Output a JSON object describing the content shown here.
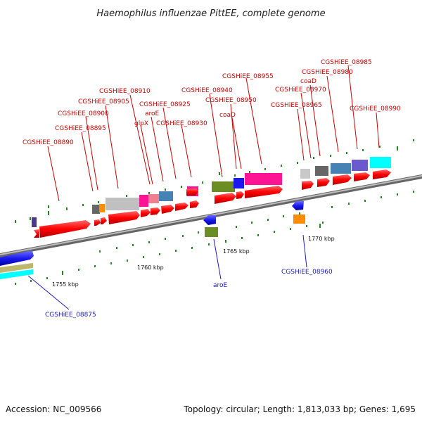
{
  "title": "Haemophilus influenzae PittEE, complete genome",
  "footer": {
    "accession": "Accession: NC_009566",
    "summary": "Topology: circular; Length: 1,813,033 bp; Genes: 1,695"
  },
  "scale_labels": [
    "1755 kbp",
    "1760 kbp",
    "1765 kbp",
    "1770 kbp"
  ],
  "top_labels": [
    "CGSHiEE_08890",
    "CGSHiEE_08895",
    "CGSHiEE_08900",
    "CGSHiEE_08905",
    "CGSHiEE_08910",
    "glpX",
    "aroE",
    "CGSHiEE_08925",
    "CGSHiEE_08930",
    "CGSHiEE_08940",
    "CGSHiEE_08950",
    "coaD",
    "CGSHiEE_08955",
    "CGSHiEE_08965",
    "CGSHiEE_08970",
    "coaD",
    "CGSHiEE_08980",
    "CGSHiEE_08985",
    "CGSHiEE_08990"
  ],
  "bottom_labels": [
    "CGSHiEE_08875",
    "aroE",
    "CGSHiEE_08960"
  ],
  "colors": {
    "cds": "#ff0000",
    "label_top": "#cc0000",
    "label_bottom": "#1a1acc",
    "backbone": "#888888",
    "tick": "#228822",
    "blue": "#1a1aee",
    "olive": "#6b8e23",
    "orange": "#ff8c00",
    "pink": "#ff1493",
    "steel": "#4682b4",
    "gray": "#666666",
    "silver": "#c0c0c0",
    "violet": "#6a5acd",
    "cyan": "#00ffff",
    "tan": "#bdb76b"
  }
}
